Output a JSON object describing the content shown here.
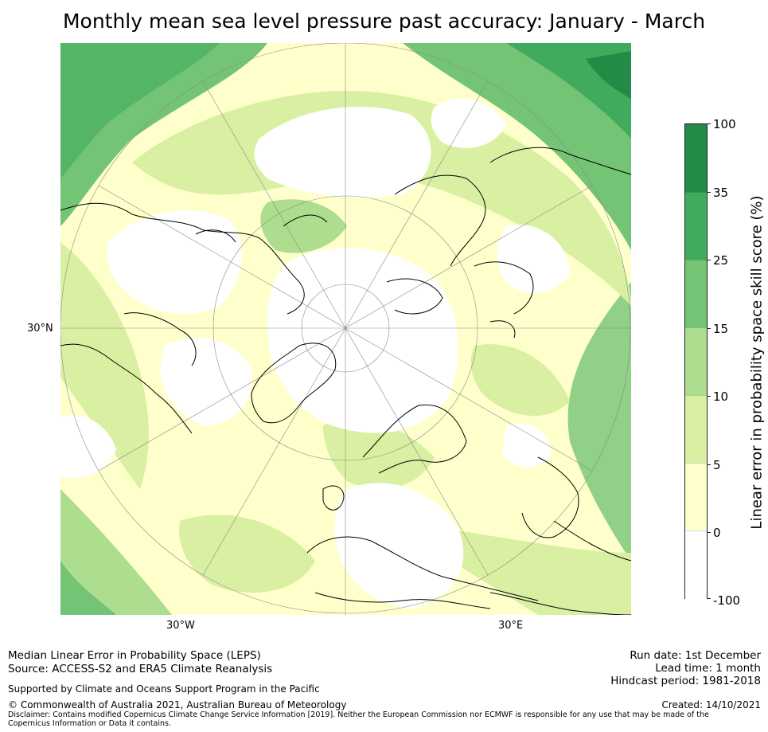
{
  "title": "Monthly mean sea level pressure past accuracy: January - March",
  "map": {
    "projection": "North polar stereographic",
    "graticule_labels": {
      "lat": "30°N",
      "west": "30°W",
      "east": "30°E"
    }
  },
  "colorbar": {
    "title": "Linear error in probability space skill score (%)",
    "ticks": [
      "100",
      "35",
      "25",
      "15",
      "10",
      "5",
      "0",
      "-100"
    ],
    "bins": [
      {
        "range": "35 to 100",
        "color": "#238b45"
      },
      {
        "range": "25 to 35",
        "color": "#41ab5d"
      },
      {
        "range": "15 to 25",
        "color": "#74c476"
      },
      {
        "range": "10 to 15",
        "color": "#addd8e"
      },
      {
        "range": "5 to 10",
        "color": "#d9f0a3"
      },
      {
        "range": "0 to 5",
        "color": "#ffffcc"
      },
      {
        "range": "-100 to 0",
        "color": "#ffffff"
      }
    ]
  },
  "footer": {
    "metric": "Median Linear Error in Probability Space (LEPS)",
    "source": "Source: ACCESS-S2 and ERA5 Climate Reanalysis",
    "support": "Supported by Climate and Oceans Support Program in the Pacific",
    "copyright": "© Commonwealth of Australia 2021, Australian Bureau of Meteorology",
    "disclaimer": "Disclaimer: Contains modified Copernicus Climate Change Service Information [2019]. Neither the European Commission nor ECMWF is responsible for any use that may be made of the Copernicus Information or Data it contains.",
    "run_date": "Run date: 1st December",
    "lead_time": "Lead time: 1 month",
    "hindcast": "Hindcast period: 1981-2018",
    "created": "Created: 14/10/2021"
  }
}
